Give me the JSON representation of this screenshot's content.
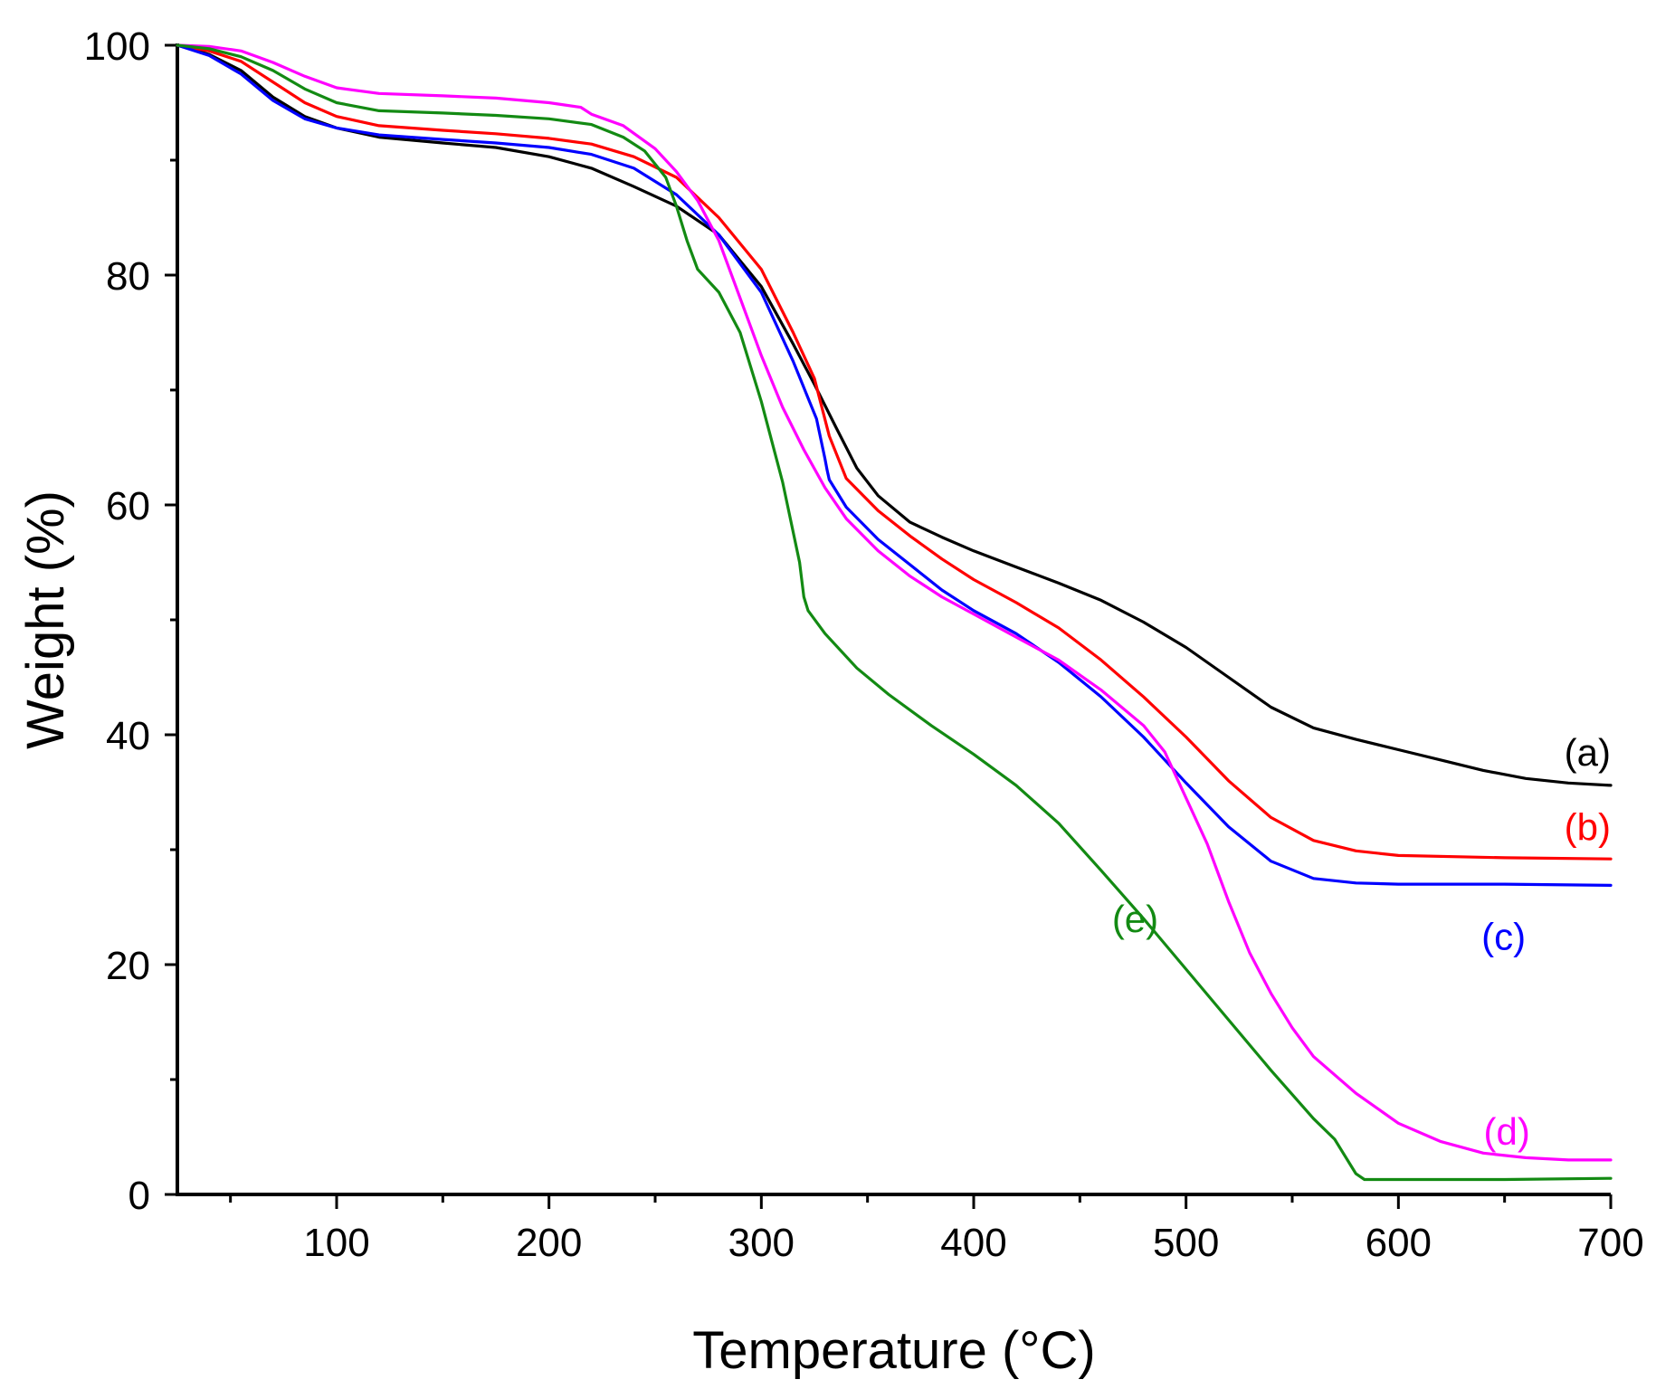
{
  "chart_data": {
    "type": "line",
    "xlabel": "Temperature (°C)",
    "ylabel": "Weight (%)",
    "xlim": [
      25,
      700
    ],
    "ylim": [
      0,
      100
    ],
    "x_major_ticks": [
      100,
      200,
      300,
      400,
      500,
      600,
      700
    ],
    "x_minor_ticks": [
      50,
      150,
      250,
      350,
      450,
      550,
      650
    ],
    "y_major_ticks": [
      0,
      20,
      40,
      60,
      80,
      100
    ],
    "y_minor_ticks": [
      10,
      30,
      50,
      70,
      90
    ],
    "x_tick_labels": [
      "100",
      "200",
      "300",
      "400",
      "500",
      "600",
      "700"
    ],
    "y_tick_labels": [
      "0",
      "20",
      "40",
      "60",
      "80",
      "100"
    ],
    "grid": false,
    "legend": "none",
    "series": [
      {
        "name": "(a)",
        "color": "#000000",
        "label_at": [
          700,
          38.5
        ],
        "points": [
          [
            25,
            100
          ],
          [
            40,
            99.2
          ],
          [
            55,
            97.8
          ],
          [
            70,
            95.5
          ],
          [
            85,
            93.8
          ],
          [
            100,
            92.8
          ],
          [
            120,
            92.0
          ],
          [
            150,
            91.5
          ],
          [
            175,
            91.1
          ],
          [
            200,
            90.3
          ],
          [
            220,
            89.3
          ],
          [
            240,
            87.7
          ],
          [
            260,
            86.0
          ],
          [
            280,
            83.5
          ],
          [
            300,
            79.0
          ],
          [
            315,
            74.0
          ],
          [
            325,
            70.5
          ],
          [
            335,
            66.8
          ],
          [
            345,
            63.2
          ],
          [
            355,
            60.8
          ],
          [
            370,
            58.5
          ],
          [
            385,
            57.2
          ],
          [
            400,
            56.0
          ],
          [
            420,
            54.6
          ],
          [
            440,
            53.2
          ],
          [
            460,
            51.7
          ],
          [
            480,
            49.8
          ],
          [
            500,
            47.6
          ],
          [
            520,
            45.0
          ],
          [
            540,
            42.4
          ],
          [
            560,
            40.6
          ],
          [
            580,
            39.6
          ],
          [
            600,
            38.7
          ],
          [
            620,
            37.8
          ],
          [
            640,
            36.9
          ],
          [
            660,
            36.2
          ],
          [
            680,
            35.8
          ],
          [
            700,
            35.6
          ]
        ]
      },
      {
        "name": "(b)",
        "color": "#ff0000",
        "label_at": [
          700,
          32.0
        ],
        "points": [
          [
            25,
            100
          ],
          [
            40,
            99.5
          ],
          [
            55,
            98.6
          ],
          [
            70,
            96.8
          ],
          [
            85,
            95.0
          ],
          [
            100,
            93.8
          ],
          [
            120,
            93.0
          ],
          [
            150,
            92.6
          ],
          [
            175,
            92.3
          ],
          [
            200,
            91.9
          ],
          [
            220,
            91.4
          ],
          [
            240,
            90.3
          ],
          [
            260,
            88.5
          ],
          [
            280,
            85.0
          ],
          [
            300,
            80.5
          ],
          [
            315,
            75.0
          ],
          [
            325,
            71.0
          ],
          [
            332,
            66.0
          ],
          [
            340,
            62.3
          ],
          [
            355,
            59.5
          ],
          [
            370,
            57.3
          ],
          [
            385,
            55.3
          ],
          [
            400,
            53.5
          ],
          [
            420,
            51.5
          ],
          [
            440,
            49.3
          ],
          [
            460,
            46.5
          ],
          [
            480,
            43.3
          ],
          [
            500,
            39.8
          ],
          [
            520,
            36.0
          ],
          [
            540,
            32.8
          ],
          [
            560,
            30.8
          ],
          [
            580,
            29.9
          ],
          [
            600,
            29.5
          ],
          [
            650,
            29.3
          ],
          [
            700,
            29.2
          ]
        ]
      },
      {
        "name": "(c)",
        "color": "#0000ff",
        "label_at": [
          660,
          22.5
        ],
        "points": [
          [
            25,
            100
          ],
          [
            40,
            99.1
          ],
          [
            55,
            97.5
          ],
          [
            70,
            95.2
          ],
          [
            85,
            93.6
          ],
          [
            100,
            92.8
          ],
          [
            120,
            92.2
          ],
          [
            150,
            91.8
          ],
          [
            175,
            91.5
          ],
          [
            200,
            91.1
          ],
          [
            220,
            90.5
          ],
          [
            240,
            89.3
          ],
          [
            260,
            87.0
          ],
          [
            280,
            83.5
          ],
          [
            300,
            78.5
          ],
          [
            315,
            72.5
          ],
          [
            326,
            67.5
          ],
          [
            330,
            64.0
          ],
          [
            331,
            63.0
          ],
          [
            332,
            62.2
          ],
          [
            340,
            59.8
          ],
          [
            355,
            57.0
          ],
          [
            370,
            54.8
          ],
          [
            385,
            52.6
          ],
          [
            400,
            50.8
          ],
          [
            420,
            48.8
          ],
          [
            440,
            46.3
          ],
          [
            460,
            43.3
          ],
          [
            480,
            39.8
          ],
          [
            500,
            35.8
          ],
          [
            520,
            32.0
          ],
          [
            540,
            29.0
          ],
          [
            560,
            27.5
          ],
          [
            580,
            27.1
          ],
          [
            600,
            27.0
          ],
          [
            650,
            27.0
          ],
          [
            700,
            26.9
          ]
        ]
      },
      {
        "name": "(d)",
        "color": "#ff00ff",
        "label_at": [
          662,
          5.5
        ],
        "points": [
          [
            25,
            100
          ],
          [
            40,
            99.9
          ],
          [
            55,
            99.5
          ],
          [
            70,
            98.5
          ],
          [
            85,
            97.3
          ],
          [
            100,
            96.3
          ],
          [
            120,
            95.8
          ],
          [
            150,
            95.6
          ],
          [
            175,
            95.4
          ],
          [
            200,
            95.0
          ],
          [
            215,
            94.6
          ],
          [
            220,
            94.0
          ],
          [
            235,
            93.0
          ],
          [
            250,
            91.0
          ],
          [
            260,
            89.0
          ],
          [
            270,
            86.5
          ],
          [
            280,
            83.0
          ],
          [
            290,
            78.0
          ],
          [
            300,
            73.0
          ],
          [
            310,
            68.5
          ],
          [
            320,
            64.8
          ],
          [
            330,
            61.5
          ],
          [
            340,
            58.8
          ],
          [
            355,
            56.0
          ],
          [
            370,
            53.8
          ],
          [
            385,
            52.0
          ],
          [
            400,
            50.5
          ],
          [
            420,
            48.5
          ],
          [
            440,
            46.5
          ],
          [
            460,
            43.9
          ],
          [
            480,
            40.8
          ],
          [
            490,
            38.5
          ],
          [
            500,
            34.5
          ],
          [
            510,
            30.5
          ],
          [
            520,
            25.5
          ],
          [
            530,
            21.0
          ],
          [
            540,
            17.5
          ],
          [
            550,
            14.5
          ],
          [
            560,
            12.0
          ],
          [
            580,
            8.8
          ],
          [
            600,
            6.2
          ],
          [
            620,
            4.6
          ],
          [
            640,
            3.6
          ],
          [
            660,
            3.2
          ],
          [
            680,
            3.0
          ],
          [
            700,
            3.0
          ]
        ]
      },
      {
        "name": "(e)",
        "color": "#138a13",
        "label_at": [
          487,
          24.0
        ],
        "points": [
          [
            25,
            100
          ],
          [
            40,
            99.7
          ],
          [
            55,
            99.0
          ],
          [
            70,
            97.8
          ],
          [
            85,
            96.2
          ],
          [
            100,
            95.0
          ],
          [
            120,
            94.3
          ],
          [
            150,
            94.1
          ],
          [
            175,
            93.9
          ],
          [
            200,
            93.6
          ],
          [
            220,
            93.1
          ],
          [
            235,
            92.0
          ],
          [
            245,
            90.8
          ],
          [
            255,
            88.5
          ],
          [
            260,
            86.0
          ],
          [
            265,
            83.0
          ],
          [
            270,
            80.5
          ],
          [
            280,
            78.5
          ],
          [
            290,
            75.0
          ],
          [
            300,
            69.0
          ],
          [
            310,
            62.0
          ],
          [
            318,
            55.0
          ],
          [
            320,
            52.0
          ],
          [
            322,
            50.8
          ],
          [
            330,
            48.8
          ],
          [
            345,
            45.8
          ],
          [
            360,
            43.5
          ],
          [
            380,
            40.8
          ],
          [
            400,
            38.3
          ],
          [
            420,
            35.6
          ],
          [
            440,
            32.3
          ],
          [
            460,
            28.2
          ],
          [
            480,
            24.0
          ],
          [
            500,
            19.6
          ],
          [
            520,
            15.2
          ],
          [
            540,
            10.8
          ],
          [
            560,
            6.6
          ],
          [
            570,
            4.8
          ],
          [
            576,
            3.0
          ],
          [
            580,
            1.8
          ],
          [
            584,
            1.3
          ],
          [
            600,
            1.3
          ],
          [
            650,
            1.3
          ],
          [
            700,
            1.4
          ]
        ]
      }
    ]
  }
}
